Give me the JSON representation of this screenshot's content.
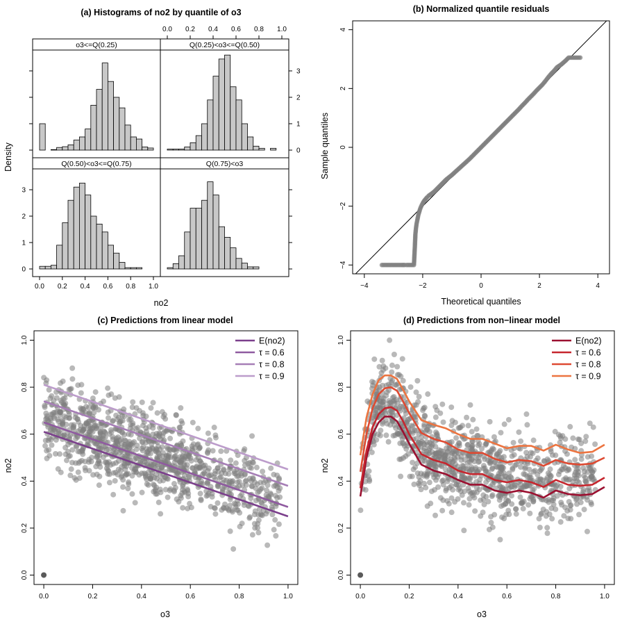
{
  "colors": {
    "points": "#808080",
    "bars": "#c8c8c8",
    "strip_bg": "#ffffff",
    "linear_lines": [
      "#7b3f8c",
      "#8f5aa0",
      "#a67eb6",
      "#bc9ccb"
    ],
    "nonlinear_lines": [
      "#9b1030",
      "#c6262e",
      "#de4a32",
      "#ec7440"
    ]
  },
  "chart_data": [
    {
      "id": "a",
      "type": "bar",
      "title": "(a) Histograms of no2 by quantile of o3",
      "xlabel": "no2",
      "ylabel": "Density",
      "xlim": [
        0,
        1
      ],
      "ylim": [
        0,
        4
      ],
      "x_ticks": [
        "0.0",
        "0.2",
        "0.4",
        "0.6",
        "0.8",
        "1.0"
      ],
      "y_ticks": [
        "0",
        "1",
        "2",
        "3"
      ],
      "bin_width": 0.05,
      "panels": [
        {
          "strip": "o3<=Q(0.25)",
          "bin_centers": [
            0.025,
            0.075,
            0.125,
            0.175,
            0.225,
            0.275,
            0.325,
            0.375,
            0.425,
            0.475,
            0.525,
            0.575,
            0.625,
            0.675,
            0.725,
            0.775,
            0.825,
            0.875,
            0.925,
            0.975
          ],
          "density": [
            1.0,
            0.0,
            0.02,
            0.1,
            0.13,
            0.2,
            0.38,
            0.5,
            0.8,
            1.7,
            2.3,
            3.3,
            2.6,
            2.0,
            1.6,
            0.95,
            0.5,
            0.42,
            0.12,
            0.08
          ]
        },
        {
          "strip": "Q(0.25)<o3<=Q(0.50)",
          "bin_centers": [
            0.025,
            0.075,
            0.125,
            0.175,
            0.225,
            0.275,
            0.325,
            0.375,
            0.425,
            0.475,
            0.525,
            0.575,
            0.625,
            0.675,
            0.725,
            0.775,
            0.825,
            0.875,
            0.925,
            0.975
          ],
          "density": [
            0.04,
            0.04,
            0.04,
            0.12,
            0.28,
            0.55,
            1.0,
            1.9,
            2.8,
            3.45,
            3.6,
            2.4,
            1.9,
            1.0,
            0.5,
            0.15,
            0.07,
            0.0,
            0.07,
            0.0
          ]
        },
        {
          "strip": "Q(0.50)<o3<=Q(0.75)",
          "bin_centers": [
            0.025,
            0.075,
            0.125,
            0.175,
            0.225,
            0.275,
            0.325,
            0.375,
            0.425,
            0.475,
            0.525,
            0.575,
            0.625,
            0.675,
            0.725,
            0.775,
            0.825,
            0.875,
            0.925,
            0.975
          ],
          "density": [
            0.1,
            0.1,
            0.14,
            0.9,
            1.75,
            2.6,
            3.1,
            3.25,
            2.8,
            2.0,
            1.7,
            1.4,
            0.9,
            0.6,
            0.25,
            0.05,
            0.05,
            0.05,
            0.0,
            0.0
          ]
        },
        {
          "strip": "Q(0.75)<o3",
          "bin_centers": [
            0.025,
            0.075,
            0.125,
            0.175,
            0.225,
            0.275,
            0.325,
            0.375,
            0.425,
            0.475,
            0.525,
            0.575,
            0.625,
            0.675,
            0.725,
            0.775,
            0.825,
            0.875,
            0.925,
            0.975
          ],
          "density": [
            0.05,
            0.2,
            0.5,
            1.4,
            2.3,
            2.3,
            2.6,
            3.3,
            2.8,
            1.6,
            1.2,
            0.8,
            0.4,
            0.22,
            0.08,
            0.08,
            0.0,
            0.0,
            0.0,
            0.0
          ]
        }
      ]
    },
    {
      "id": "b",
      "type": "scatter",
      "title": "(b) Normalized quantile residuals",
      "xlabel": "Theoretical quantiles",
      "ylabel": "Sample quantiles",
      "xlim": [
        -4.4,
        4.4
      ],
      "ylim": [
        -4.3,
        4.3
      ],
      "x_ticks": [
        "−4",
        "−2",
        "0",
        "2",
        "4"
      ],
      "y_ticks": [
        "−4",
        "−2",
        "0",
        "2",
        "4"
      ],
      "reference_line": {
        "slope": 1,
        "intercept": 0
      },
      "points": [
        [
          -3.4,
          -4.0
        ],
        [
          -3.05,
          -4.0
        ],
        [
          -2.9,
          -4.0
        ],
        [
          -2.8,
          -4.0
        ],
        [
          -2.7,
          -4.0
        ],
        [
          -2.62,
          -4.0
        ],
        [
          -2.55,
          -4.0
        ],
        [
          -2.5,
          -4.0
        ],
        [
          -2.45,
          -4.0
        ],
        [
          -2.4,
          -4.0
        ],
        [
          -2.35,
          -4.0
        ],
        [
          -2.3,
          -4.0
        ],
        [
          -2.27,
          -3.4
        ],
        [
          -2.25,
          -2.95
        ],
        [
          -2.23,
          -2.75
        ],
        [
          -2.21,
          -2.6
        ],
        [
          -2.18,
          -2.45
        ],
        [
          -2.15,
          -2.3
        ],
        [
          -2.12,
          -2.2
        ],
        [
          -2.09,
          -2.1
        ],
        [
          -2.05,
          -2.0
        ],
        [
          -2.0,
          -1.9
        ],
        [
          -1.95,
          -1.82
        ],
        [
          -1.9,
          -1.76
        ],
        [
          -1.85,
          -1.7
        ],
        [
          -1.8,
          -1.65
        ],
        [
          -1.7,
          -1.58
        ],
        [
          -1.6,
          -1.5
        ],
        [
          -1.5,
          -1.4
        ],
        [
          -1.4,
          -1.3
        ],
        [
          -1.3,
          -1.2
        ],
        [
          -1.2,
          -1.1
        ],
        [
          -1.1,
          -1.02
        ],
        [
          -1.0,
          -0.94
        ],
        [
          -0.9,
          -0.85
        ],
        [
          -0.8,
          -0.76
        ],
        [
          -0.7,
          -0.67
        ],
        [
          -0.6,
          -0.58
        ],
        [
          -0.5,
          -0.49
        ],
        [
          -0.4,
          -0.4
        ],
        [
          -0.3,
          -0.3
        ],
        [
          -0.2,
          -0.2
        ],
        [
          -0.1,
          -0.1
        ],
        [
          0.0,
          0.0
        ],
        [
          0.1,
          0.1
        ],
        [
          0.2,
          0.2
        ],
        [
          0.3,
          0.3
        ],
        [
          0.4,
          0.4
        ],
        [
          0.5,
          0.5
        ],
        [
          0.6,
          0.6
        ],
        [
          0.7,
          0.7
        ],
        [
          0.8,
          0.8
        ],
        [
          0.9,
          0.9
        ],
        [
          1.0,
          1.0
        ],
        [
          1.1,
          1.1
        ],
        [
          1.2,
          1.2
        ],
        [
          1.3,
          1.3
        ],
        [
          1.4,
          1.41
        ],
        [
          1.5,
          1.51
        ],
        [
          1.6,
          1.62
        ],
        [
          1.7,
          1.72
        ],
        [
          1.8,
          1.82
        ],
        [
          1.9,
          1.93
        ],
        [
          2.0,
          2.03
        ],
        [
          2.1,
          2.13
        ],
        [
          2.2,
          2.25
        ],
        [
          2.3,
          2.38
        ],
        [
          2.4,
          2.5
        ],
        [
          2.5,
          2.6
        ],
        [
          2.6,
          2.72
        ],
        [
          2.75,
          2.82
        ],
        [
          2.9,
          2.95
        ],
        [
          3.0,
          3.05
        ],
        [
          3.1,
          3.05
        ],
        [
          3.4,
          3.05
        ]
      ]
    },
    {
      "id": "c",
      "type": "scatter",
      "title": "(c) Predictions from linear model",
      "xlabel": "o3",
      "ylabel": "no2",
      "xlim": [
        -0.04,
        1.04
      ],
      "ylim": [
        -0.04,
        1.04
      ],
      "x_ticks": [
        "0.0",
        "0.2",
        "0.4",
        "0.6",
        "0.8",
        "1.0"
      ],
      "y_ticks": [
        "0.0",
        "0.2",
        "0.4",
        "0.6",
        "0.8",
        "1.0"
      ],
      "legend_position": "top-right",
      "series": [
        {
          "name": "E(no2)",
          "x": [
            0,
            1
          ],
          "y": [
            0.61,
            0.25
          ]
        },
        {
          "name": "τ = 0.6",
          "x": [
            0,
            1
          ],
          "y": [
            0.65,
            0.29
          ]
        },
        {
          "name": "τ = 0.8",
          "x": [
            0,
            1
          ],
          "y": [
            0.74,
            0.38
          ]
        },
        {
          "name": "τ = 0.9",
          "x": [
            0,
            1
          ],
          "y": [
            0.81,
            0.45
          ]
        }
      ]
    },
    {
      "id": "d",
      "type": "scatter",
      "title": "(d) Predictions from non−linear model",
      "xlabel": "o3",
      "ylabel": "no2",
      "xlim": [
        -0.04,
        1.04
      ],
      "ylim": [
        -0.04,
        1.04
      ],
      "x_ticks": [
        "0.0",
        "0.2",
        "0.4",
        "0.6",
        "0.8",
        "1.0"
      ],
      "y_ticks": [
        "0.0",
        "0.2",
        "0.4",
        "0.6",
        "0.8",
        "1.0"
      ],
      "legend_position": "top-right",
      "series": [
        {
          "name": "E(no2)",
          "x": [
            0,
            0.025,
            0.05,
            0.075,
            0.1,
            0.125,
            0.15,
            0.175,
            0.2,
            0.25,
            0.3,
            0.35,
            0.4,
            0.45,
            0.5,
            0.55,
            0.6,
            0.65,
            0.7,
            0.75,
            0.8,
            0.85,
            0.9,
            0.95,
            1.0
          ],
          "y": [
            0.335,
            0.5,
            0.6,
            0.65,
            0.675,
            0.675,
            0.655,
            0.61,
            0.56,
            0.47,
            0.445,
            0.43,
            0.405,
            0.385,
            0.385,
            0.36,
            0.35,
            0.36,
            0.35,
            0.33,
            0.36,
            0.345,
            0.34,
            0.345,
            0.375
          ]
        },
        {
          "name": "τ = 0.6",
          "x": [
            0,
            0.025,
            0.05,
            0.075,
            0.1,
            0.125,
            0.15,
            0.175,
            0.2,
            0.25,
            0.3,
            0.35,
            0.4,
            0.45,
            0.5,
            0.55,
            0.6,
            0.65,
            0.7,
            0.75,
            0.8,
            0.85,
            0.9,
            0.95,
            1.0
          ],
          "y": [
            0.37,
            0.53,
            0.63,
            0.685,
            0.71,
            0.715,
            0.7,
            0.655,
            0.6,
            0.515,
            0.49,
            0.475,
            0.445,
            0.43,
            0.43,
            0.405,
            0.395,
            0.405,
            0.395,
            0.375,
            0.405,
            0.385,
            0.38,
            0.385,
            0.415
          ]
        },
        {
          "name": "τ = 0.8",
          "x": [
            0,
            0.025,
            0.05,
            0.075,
            0.1,
            0.125,
            0.15,
            0.175,
            0.2,
            0.25,
            0.3,
            0.35,
            0.4,
            0.45,
            0.5,
            0.55,
            0.6,
            0.65,
            0.7,
            0.75,
            0.8,
            0.85,
            0.9,
            0.95,
            1.0
          ],
          "y": [
            0.44,
            0.6,
            0.71,
            0.77,
            0.795,
            0.8,
            0.785,
            0.74,
            0.69,
            0.605,
            0.58,
            0.565,
            0.535,
            0.52,
            0.52,
            0.495,
            0.48,
            0.49,
            0.485,
            0.465,
            0.49,
            0.475,
            0.47,
            0.475,
            0.5
          ]
        },
        {
          "name": "τ = 0.9",
          "x": [
            0,
            0.025,
            0.05,
            0.075,
            0.1,
            0.125,
            0.15,
            0.175,
            0.2,
            0.25,
            0.3,
            0.35,
            0.4,
            0.45,
            0.5,
            0.55,
            0.6,
            0.65,
            0.7,
            0.75,
            0.8,
            0.85,
            0.9,
            0.95,
            1.0
          ],
          "y": [
            0.51,
            0.67,
            0.77,
            0.83,
            0.85,
            0.85,
            0.835,
            0.79,
            0.74,
            0.66,
            0.64,
            0.625,
            0.6,
            0.58,
            0.58,
            0.56,
            0.54,
            0.55,
            0.55,
            0.53,
            0.555,
            0.535,
            0.52,
            0.525,
            0.555
          ]
        }
      ]
    }
  ]
}
